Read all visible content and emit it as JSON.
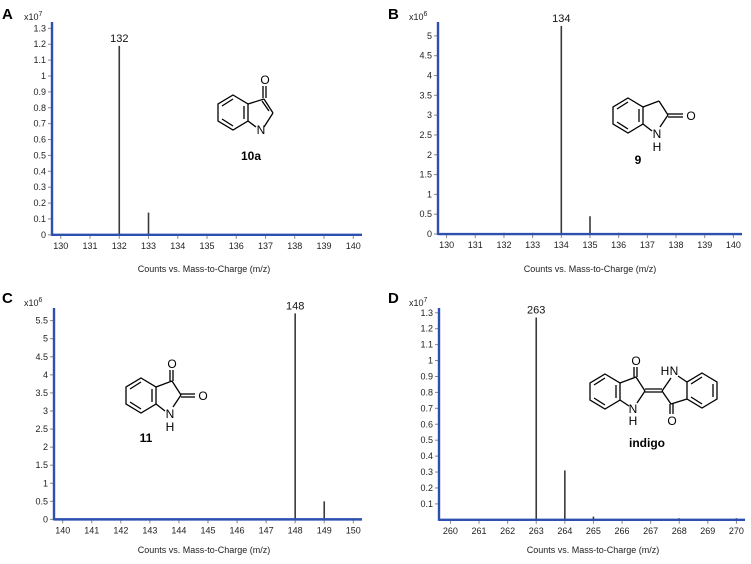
{
  "chart_data": [
    {
      "type": "bar",
      "panel": "A",
      "scale_base": "x10",
      "scale_exp": "7",
      "xlabel": "Counts vs. Mass-to-Charge (m/z)",
      "xlim": [
        129.7,
        140.3
      ],
      "ylim": [
        -0.02,
        1.34
      ],
      "x_ticks": [
        130,
        131,
        132,
        133,
        134,
        135,
        136,
        137,
        138,
        139,
        140
      ],
      "y_ticks": [
        0,
        0.1,
        0.2,
        0.3,
        0.4,
        0.5,
        0.6,
        0.7,
        0.8,
        0.9,
        1,
        1.1,
        1.2,
        1.3
      ],
      "peaks": [
        {
          "x": 132,
          "y": 1.19
        },
        {
          "x": 133,
          "y": 0.14
        }
      ],
      "peak_label": {
        "x": 132,
        "text": "132"
      },
      "compound": "10a"
    },
    {
      "type": "bar",
      "panel": "B",
      "scale_base": "x10",
      "scale_exp": "6",
      "xlabel": "Counts vs. Mass-to-Charge (m/z)",
      "xlim": [
        129.7,
        140.3
      ],
      "ylim": [
        -0.1,
        5.35
      ],
      "x_ticks": [
        130,
        131,
        132,
        133,
        134,
        135,
        136,
        137,
        138,
        139,
        140
      ],
      "y_ticks": [
        0,
        0.5,
        1,
        1.5,
        2,
        2.5,
        3,
        3.5,
        4,
        4.5,
        5
      ],
      "peaks": [
        {
          "x": 132,
          "y": 0.03
        },
        {
          "x": 133,
          "y": 0.03
        },
        {
          "x": 134,
          "y": 5.25
        },
        {
          "x": 135,
          "y": 0.45
        },
        {
          "x": 136,
          "y": 0.03
        }
      ],
      "peak_label": {
        "x": 134,
        "text": "134"
      },
      "compound": "9"
    },
    {
      "type": "bar",
      "panel": "C",
      "scale_base": "x10",
      "scale_exp": "6",
      "xlabel": "Counts vs. Mass-to-Charge (m/z)",
      "xlim": [
        139.7,
        150.3
      ],
      "ylim": [
        -0.1,
        5.85
      ],
      "x_ticks": [
        140,
        141,
        142,
        143,
        144,
        145,
        146,
        147,
        148,
        149,
        150
      ],
      "y_ticks": [
        0,
        0.5,
        1,
        1.5,
        2,
        2.5,
        3,
        3.5,
        4,
        4.5,
        5,
        5.5
      ],
      "peaks": [
        {
          "x": 146,
          "y": 0.03
        },
        {
          "x": 148,
          "y": 5.7
        },
        {
          "x": 149,
          "y": 0.5
        },
        {
          "x": 150,
          "y": 0.03
        }
      ],
      "peak_label": {
        "x": 148,
        "text": "148"
      },
      "compound": "11"
    },
    {
      "type": "bar",
      "panel": "D",
      "scale_base": "x10",
      "scale_exp": "7",
      "xlabel": "Counts vs. Mass-to-Charge (m/z)",
      "xlim": [
        259.6,
        270.3
      ],
      "ylim": [
        -0.02,
        1.33
      ],
      "x_ticks": [
        260,
        261,
        262,
        263,
        264,
        265,
        266,
        267,
        268,
        269,
        270
      ],
      "y_ticks": [
        0.1,
        0.2,
        0.3,
        0.4,
        0.5,
        0.6,
        0.7,
        0.8,
        0.9,
        1,
        1.1,
        1.2,
        1.3
      ],
      "peaks": [
        {
          "x": 263,
          "y": 1.27
        },
        {
          "x": 264,
          "y": 0.31
        },
        {
          "x": 265,
          "y": 0.02
        },
        {
          "x": 268,
          "y": 0.01
        },
        {
          "x": 270,
          "y": 0.01
        }
      ],
      "peak_label": {
        "x": 263,
        "text": "263"
      },
      "compound": "indigo"
    }
  ],
  "atoms": {
    "O": "O",
    "N": "N",
    "H": "H"
  },
  "colors": {
    "axis": "#2d4fb0",
    "peak": "#3a3a3a",
    "tick": "#888888",
    "text": "#222222"
  }
}
